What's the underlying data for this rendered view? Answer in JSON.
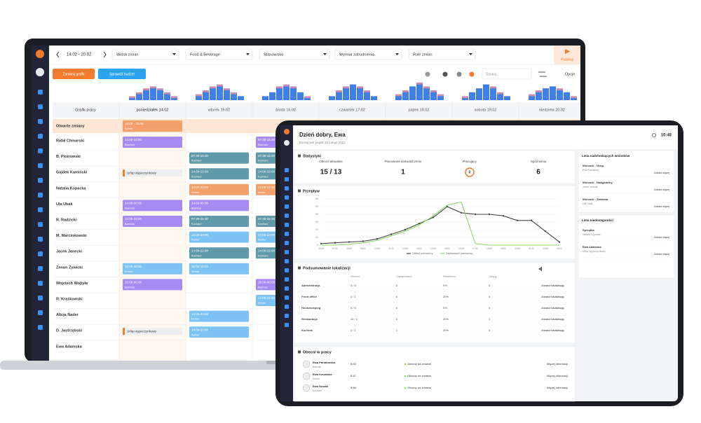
{
  "laptop": {
    "toolbar": {
      "date_range": "14.02 - 20.02",
      "filters": [
        "Widok zmian",
        "Food & Beverage",
        "Stanowisko",
        "Wymiar zatrudnienia",
        "Role zmian"
      ],
      "publish": "Publikuj"
    },
    "actions": {
      "close": "Zamknij grafik",
      "budget": "Sprawdź budżet",
      "search": "Szukaj...",
      "options": "Opcje"
    },
    "staffing": {
      "type": "bar",
      "ylim": [
        0,
        10
      ],
      "color": "#3f7fe6",
      "planned_color": "#c98bb3",
      "days": [
        {
          "planned": [
            2,
            4,
            6,
            7,
            6,
            4,
            2
          ],
          "values": [
            1,
            3,
            5,
            6,
            5,
            3,
            1
          ]
        },
        {
          "planned": [
            3,
            5,
            7,
            8,
            6,
            4,
            2
          ],
          "values": [
            2,
            4,
            6,
            7,
            5,
            3,
            2
          ]
        },
        {
          "planned": [
            2,
            4,
            7,
            8,
            7,
            4,
            2
          ],
          "values": [
            2,
            4,
            6,
            7,
            6,
            4,
            1
          ]
        },
        {
          "planned": [
            2,
            5,
            7,
            8,
            7,
            5,
            2
          ],
          "values": [
            2,
            4,
            6,
            8,
            6,
            4,
            2
          ]
        },
        {
          "planned": [
            3,
            5,
            7,
            9,
            7,
            5,
            3
          ],
          "values": [
            2,
            4,
            7,
            8,
            6,
            4,
            2
          ]
        },
        {
          "planned": [
            2,
            4,
            6,
            8,
            7,
            4,
            2
          ],
          "values": [
            1,
            4,
            6,
            8,
            6,
            3,
            2
          ]
        },
        {
          "planned": [
            3,
            5,
            6,
            7,
            6,
            4,
            2
          ],
          "values": [
            2,
            4,
            6,
            7,
            5,
            4,
            1
          ]
        }
      ]
    },
    "schedule": {
      "first_col": "Grafik pracy",
      "days": [
        "poniedziałek 14.02",
        "wtorek 15.02",
        "środa 16.02",
        "czwartek 17.02",
        "piątek 18.02",
        "sobota 19.02",
        "niedziela 20.02"
      ],
      "open_shifts": {
        "label": "Otwarte zmiany",
        "time": "14:00 - 22:00",
        "role": "Kelner",
        "color": "#f4a06b"
      },
      "employees": [
        "Rafał Chmarski",
        "B. Piotrowski",
        "Gajdek Kamiński",
        "Natalia Kopacka",
        "Ula Ubak",
        "R. Radzicki",
        "M. Marcinkowski",
        "Jacek Janecki",
        "Zenon Żywicki",
        "Wojciech Wojtyła",
        "R. Kraśkowski",
        "Alicja Nader",
        "D. Jastrzębski",
        "Ewa Adamska"
      ],
      "shifts": [
        {
          "row": 0,
          "day": 0,
          "time": "14:00-22:00",
          "role": "Barman",
          "color": "#a78bf3"
        },
        {
          "row": 0,
          "day": 2,
          "time": "07:30-15:30",
          "role": "Barman",
          "color": "#a78bf3"
        },
        {
          "row": 1,
          "day": 1,
          "time": "07:30-15:30",
          "role": "Kucharz",
          "color": "#5f9aab"
        },
        {
          "row": 1,
          "day": 2,
          "time": "07:30-15:30",
          "role": "Kucharz",
          "color": "#5f9aab"
        },
        {
          "row": 2,
          "day": 1,
          "time": "14:00-22:00",
          "role": "Kucharz",
          "color": "#5f9aab"
        },
        {
          "row": 2,
          "day": 2,
          "time": "14:00-22:00",
          "role": "Kucharz",
          "color": "#5f9aab"
        },
        {
          "row": 3,
          "day": 1,
          "time": "14:00-22:00",
          "role": "Kelner",
          "color": "#f4a06b"
        },
        {
          "row": 3,
          "day": 2,
          "time": "14:00-22:00",
          "role": "Kelner",
          "color": "#f4a06b"
        },
        {
          "row": 4,
          "day": 0,
          "time": "14:00-00:00",
          "role": "Barman",
          "color": "#a78bf3"
        },
        {
          "row": 4,
          "day": 1,
          "time": "14:00-00:00",
          "role": "Barman",
          "color": "#a78bf3"
        },
        {
          "row": 5,
          "day": 0,
          "time": "14:00-22:00",
          "role": "Barman",
          "color": "#a78bf3"
        },
        {
          "row": 5,
          "day": 1,
          "time": "07:30-15:30",
          "role": "Kucharz",
          "color": "#5f9aab"
        },
        {
          "row": 5,
          "day": 2,
          "time": "07:30-15:30",
          "role": "Kucharz",
          "color": "#5f9aab"
        },
        {
          "row": 6,
          "day": 1,
          "time": "14:00-22:00",
          "role": "Kelner",
          "color": "#7cc3f4"
        },
        {
          "row": 6,
          "day": 2,
          "time": "14:00-22:00",
          "role": "Kelner",
          "color": "#7cc3f4"
        },
        {
          "row": 7,
          "day": 1,
          "time": "14:00-22:00",
          "role": "Kucharz",
          "color": "#5f9aab"
        },
        {
          "row": 7,
          "day": 2,
          "time": "14:00-22:00",
          "role": "Kucharz",
          "color": "#5f9aab"
        },
        {
          "row": 8,
          "day": 0,
          "time": "15:00-18:00",
          "role": "Kelner",
          "color": "#7cc3f4"
        },
        {
          "row": 8,
          "day": 1,
          "time": "15:00-18:00",
          "role": "Kelner",
          "color": "#7cc3f4"
        },
        {
          "row": 9,
          "day": 0,
          "time": "15:00-00:00",
          "role": "Barman",
          "color": "#a78bf3"
        },
        {
          "row": 9,
          "day": 2,
          "time": "15:00-00:00",
          "role": "Barman",
          "color": "#a78bf3"
        },
        {
          "row": 10,
          "day": 2,
          "time": "14:00-22:00",
          "role": "Kelner",
          "color": "#7cc3f4"
        },
        {
          "row": 11,
          "day": 1,
          "time": "14:00-22:00",
          "role": "Kelner",
          "color": "#7cc3f4"
        },
        {
          "row": 12,
          "day": 1,
          "time": "14:00-22:00",
          "role": "Kelner",
          "color": "#7cc3f4"
        }
      ],
      "leaves": [
        {
          "row": 2,
          "day": 0,
          "label": "Urlop wypoczynkowy"
        },
        {
          "row": 12,
          "day": 0,
          "label": "Urlop wypoczynkowy"
        }
      ]
    }
  },
  "tablet": {
    "header": {
      "greeting": "Dzień dobry, Ewa",
      "date": "Dzisiaj jest piątek 18 lutego 2022",
      "clock": "16:48"
    },
    "stats": {
      "title": "Statystyki",
      "items": [
        {
          "label": "Obecni aktualnie",
          "value": "15 / 13"
        },
        {
          "label": "Planowane doświadczenie",
          "value": "1"
        },
        {
          "label": "Pracujący",
          "value": "0"
        },
        {
          "label": "Spóźnienia",
          "value": "6"
        }
      ]
    },
    "chart": {
      "type": "line",
      "title": "Przepływ",
      "categories": [
        "06:00",
        "07:00",
        "08:00",
        "09:00",
        "10:00",
        "11:00",
        "12:00",
        "13:00",
        "14:00",
        "15:00",
        "16:00",
        "17:00",
        "18:00",
        "19:00",
        "20:00",
        "21:00",
        "22:00",
        "23:00"
      ],
      "series": [
        {
          "name": "Obecni pracownicy",
          "color": "#444444",
          "values": [
            2,
            3,
            4,
            5,
            8,
            14,
            20,
            28,
            36,
            50,
            42,
            40,
            40,
            38,
            32,
            32,
            18,
            4
          ]
        },
        {
          "name": "Zaplanowani pracownicy",
          "color": "#8fd86a",
          "values": [
            0,
            0,
            1,
            3,
            6,
            12,
            18,
            26,
            38,
            52,
            56,
            2,
            0,
            0,
            0,
            0,
            0,
            0
          ]
        }
      ],
      "ylim": [
        0,
        60
      ],
      "yticks": [
        0,
        10,
        20,
        30,
        40,
        50,
        60
      ],
      "grid": true
    },
    "summary": {
      "title": "Podsumowanie lokalizacji",
      "columns": [
        "Obecni",
        "Zaplanowani",
        "Nieobecni",
        "Urlopy"
      ],
      "rows": [
        [
          "Administracja",
          "3 / 4",
          "0",
          "0%",
          "0",
          "Zobacz lokalizację"
        ],
        [
          "Front office",
          "2 / 1",
          "0",
          "20%",
          "0",
          "Zobacz lokalizację"
        ],
        [
          "Housekeeping",
          "0 / 0",
          "0",
          "0%",
          "0",
          "Zobacz lokalizację"
        ],
        [
          "Restauracja",
          "12 / 1",
          "2",
          "20%",
          "1",
          "Zobacz lokalizację"
        ],
        [
          "Kuchnia",
          "2 / 1",
          "1",
          "20%",
          "0",
          "Zobacz lokalizację"
        ]
      ]
    },
    "attendance": {
      "title": "Obecni w pracy",
      "rows": [
        [
          "Ewa Paradowska",
          "Barman",
          "8:00",
          "Obecny na zmianie",
          "Więcej informacji"
        ],
        [
          "Ewa Kowalska",
          "Kelner",
          "8:47",
          "Obecny na zmianie",
          "Więcej informacji"
        ],
        [
          "Ewa Nowak",
          "Kucharz",
          "9:58",
          "Obecny na zmianie",
          "Więcej informacji"
        ]
      ]
    },
    "requests": {
      "title": "Lista nadchodzących wniosków",
      "items": [
        {
          "title": "Wniosek - Urlop",
          "detail": "Ewa Kowalska",
          "action": "Zobacz więcej"
        },
        {
          "title": "Wniosek - Nadgodziny",
          "detail": "Jacek Janecki",
          "action": "Zobacz więcej"
        },
        {
          "title": "Wniosek - Zamiana",
          "detail": "Ula Ubak",
          "action": "Zobacz więcej"
        }
      ]
    },
    "unavailability": {
      "title": "Lista niedostępności",
      "items": [
        {
          "title": "Sprzątka",
          "detail": "Natalia Kopacka",
          "action": "Zobacz więcej"
        },
        {
          "title": "Ewa Adamska",
          "detail": "Urlop wypoczynkowy",
          "action": "Zobacz więcej"
        }
      ]
    }
  }
}
